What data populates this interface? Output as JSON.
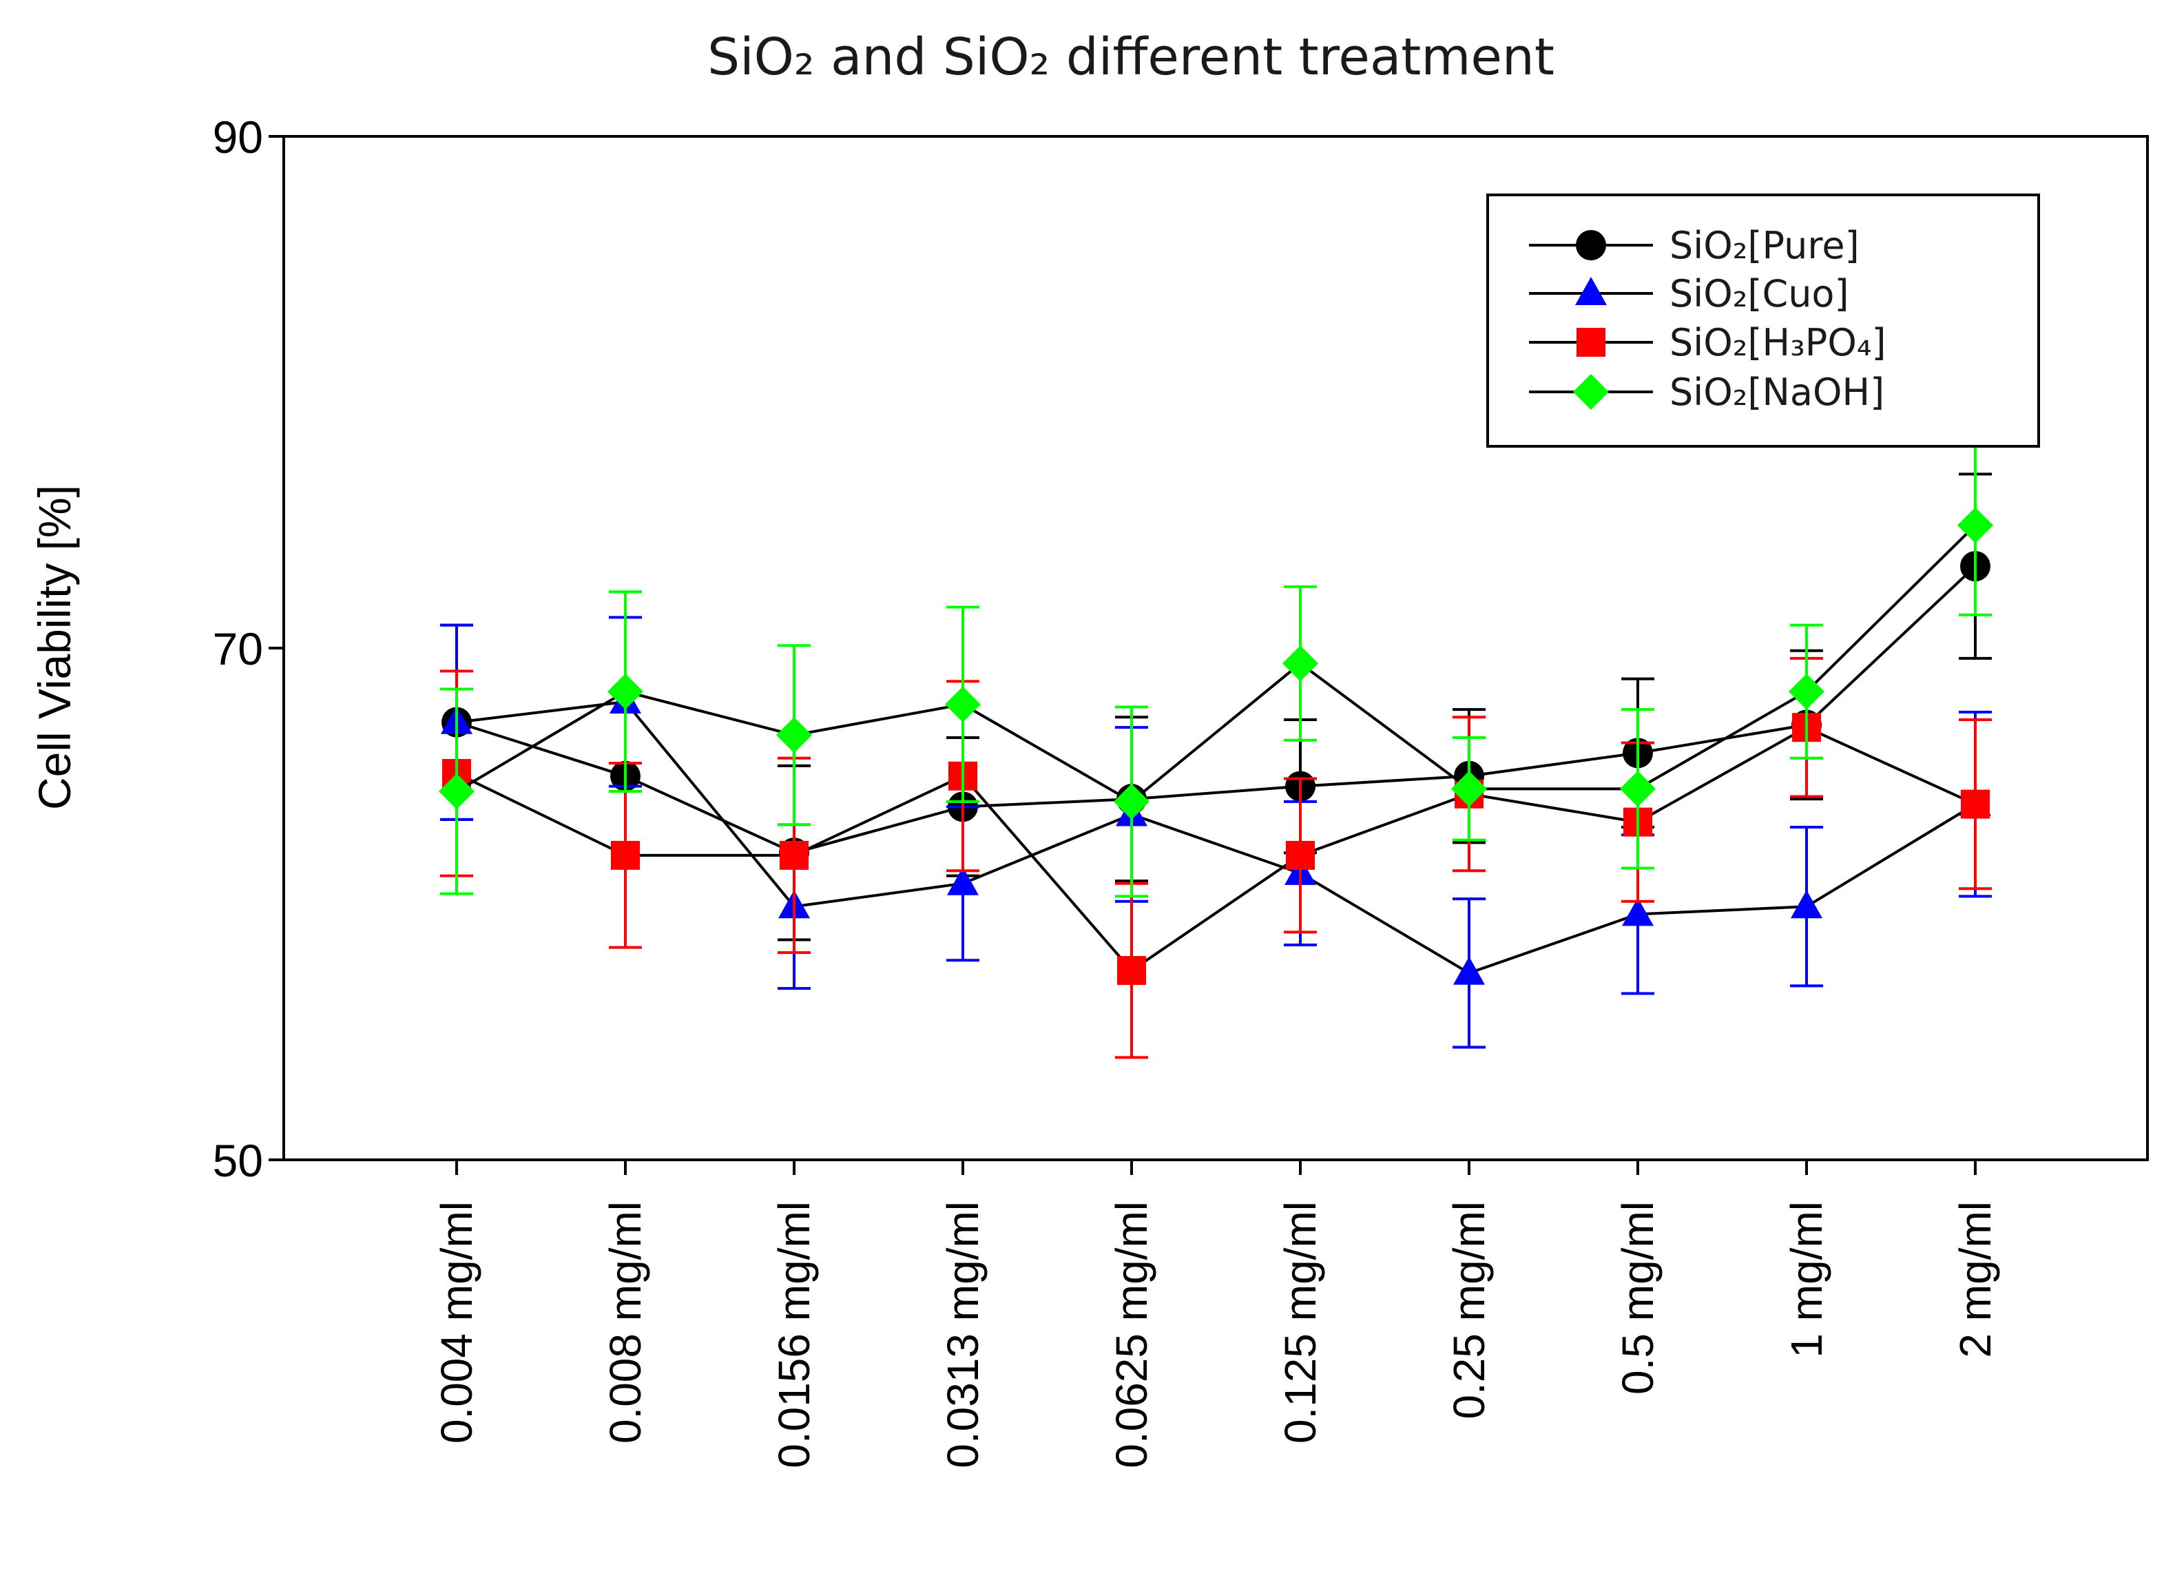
{
  "chart_data": {
    "type": "line",
    "title": "SiO₂ and SiO₂ different treatment",
    "xlabel": "",
    "ylabel": "Cell Viability [%]",
    "ylim": [
      50,
      90
    ],
    "yticks": [
      "50",
      "70",
      "90"
    ],
    "grid": false,
    "legend_position": "top-right",
    "categories": [
      "0.004 mg/ml",
      "0.008 mg/ml",
      "0.0156 mg/ml",
      "0.0313 mg/ml",
      "0.0625 mg/ml",
      "0.125 mg/ml",
      "0.25 mg/ml",
      "0.5 mg/ml",
      "1 mg/ml",
      "2 mg/ml"
    ],
    "series": [
      {
        "name": "SiO₂[Pure]",
        "color": "#000000",
        "marker": "circle",
        "values": [
          67.1,
          65.0,
          62.0,
          63.8,
          64.1,
          64.6,
          65.0,
          65.9,
          67.0,
          73.2
        ],
        "errors": [
          3.8,
          0.0,
          3.4,
          2.7,
          3.2,
          2.6,
          2.6,
          2.9,
          2.9,
          3.6
        ]
      },
      {
        "name": "SiO₂[Cuo]",
        "color": "#0000ff",
        "marker": "triangle",
        "values": [
          67.1,
          67.9,
          59.9,
          60.8,
          63.5,
          61.2,
          57.3,
          59.6,
          59.9,
          63.9
        ],
        "errors": [
          3.8,
          3.3,
          3.2,
          3.0,
          3.4,
          2.8,
          2.9,
          3.1,
          3.1,
          3.6
        ]
      },
      {
        "name": "SiO₂[H₃PO₄]",
        "color": "#ff0000",
        "marker": "square",
        "values": [
          65.1,
          61.9,
          61.9,
          65.0,
          57.4,
          61.9,
          64.3,
          63.2,
          66.9,
          63.9
        ],
        "errors": [
          4.0,
          3.6,
          3.8,
          3.7,
          3.4,
          3.0,
          3.0,
          3.1,
          2.7,
          3.3
        ]
      },
      {
        "name": "SiO₂[NaOH]",
        "color": "#00ff00",
        "marker": "diamond",
        "values": [
          64.4,
          68.3,
          66.6,
          67.8,
          64.0,
          69.4,
          64.5,
          64.5,
          68.3,
          74.8
        ],
        "errors": [
          4.0,
          3.9,
          3.5,
          3.8,
          3.7,
          3.0,
          2.0,
          3.1,
          2.6,
          3.5
        ]
      }
    ]
  }
}
